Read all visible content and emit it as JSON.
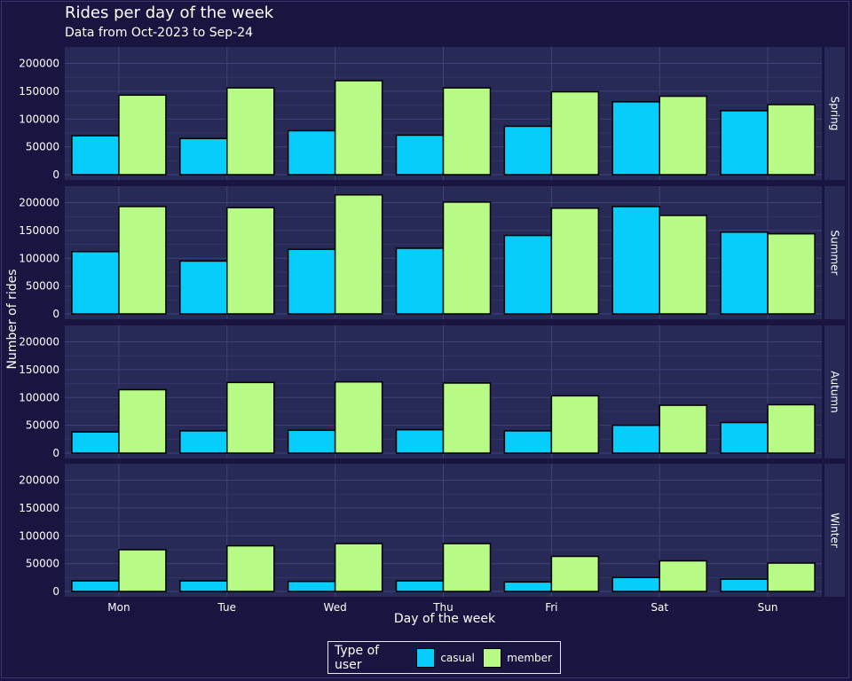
{
  "chart_data": {
    "type": "bar",
    "title": "Rides per day of the week",
    "subtitle": "Data from Oct-2023 to Sep-24",
    "xlabel": "Day of the week",
    "ylabel": "Number of rides",
    "categories": [
      "Mon",
      "Tue",
      "Wed",
      "Thu",
      "Fri",
      "Sat",
      "Sun"
    ],
    "ylim": [
      0,
      220000
    ],
    "yticks": [
      0,
      50000,
      100000,
      150000,
      200000
    ],
    "ytick_labels": [
      "0",
      "50000",
      "100000",
      "150000",
      "200000"
    ],
    "facets": [
      {
        "label": "Spring",
        "series": [
          {
            "name": "casual",
            "values": [
              70000,
              65000,
              79000,
              71000,
              87000,
              131000,
              115000
            ]
          },
          {
            "name": "member",
            "values": [
              143000,
              156000,
              169000,
              156000,
              149000,
              141000,
              126000
            ]
          }
        ]
      },
      {
        "label": "Summer",
        "series": [
          {
            "name": "casual",
            "values": [
              112000,
              95000,
              116000,
              118000,
              141000,
              193000,
              147000
            ]
          },
          {
            "name": "member",
            "values": [
              193000,
              191000,
              214000,
              201000,
              190000,
              177000,
              144000
            ]
          }
        ]
      },
      {
        "label": "Autumn",
        "series": [
          {
            "name": "casual",
            "values": [
              38000,
              40000,
              41000,
              42000,
              40000,
              50000,
              55000
            ]
          },
          {
            "name": "member",
            "values": [
              114000,
              127000,
              128000,
              126000,
              103000,
              86000,
              87000
            ]
          }
        ]
      },
      {
        "label": "Winter",
        "series": [
          {
            "name": "casual",
            "values": [
              19000,
              19000,
              18000,
              19000,
              17000,
              25000,
              22000
            ]
          },
          {
            "name": "member",
            "values": [
              75000,
              82000,
              86000,
              86000,
              63000,
              55000,
              51000
            ]
          }
        ]
      }
    ],
    "legend": {
      "title": "Type of user",
      "position": "bottom",
      "items": [
        {
          "name": "casual",
          "color": "#06cdfb"
        },
        {
          "name": "member",
          "color": "#b8fa86"
        }
      ]
    },
    "grid": true,
    "colors": {
      "background": "#1a1440",
      "panel": "#272957",
      "strip": "#272957",
      "casual": "#06cdfb",
      "member": "#b8fa86"
    }
  }
}
